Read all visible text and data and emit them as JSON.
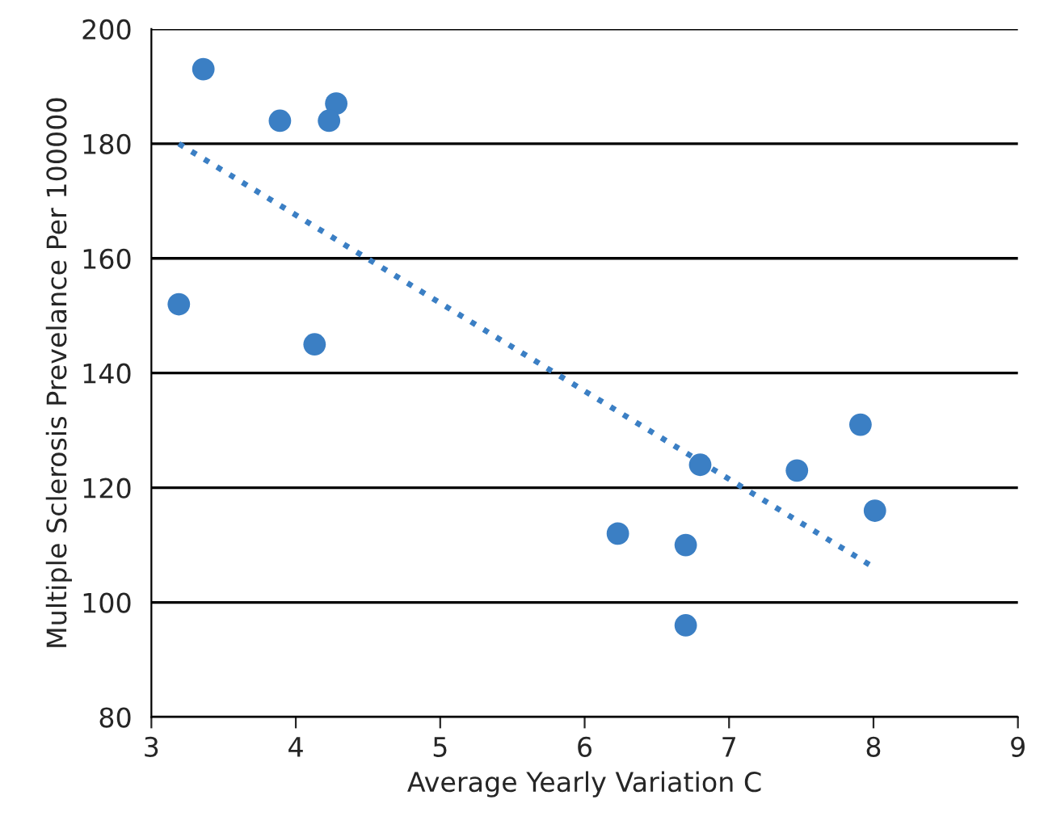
{
  "chart_data": {
    "type": "scatter",
    "xlabel": "Average Yearly Variation C",
    "ylabel": "Multiple Sclerosis Prevelance Per 100000",
    "xlim": [
      3,
      9
    ],
    "xticks": [
      3,
      4,
      5,
      6,
      7,
      8,
      9
    ],
    "ylim": [
      80,
      200
    ],
    "yticks": [
      80,
      100,
      120,
      140,
      160,
      180,
      200
    ],
    "grid": "y",
    "marker": "circle",
    "series": [
      {
        "color": "#3b7fc4",
        "x": [
          3.19,
          3.36,
          3.89,
          4.28,
          4.23,
          4.13,
          6.23,
          6.7,
          6.7,
          6.8,
          7.47,
          7.91,
          8.01
        ],
        "values": [
          152,
          193,
          184,
          187,
          184,
          145,
          112,
          110,
          96,
          124,
          123,
          131,
          116
        ]
      },
      {
        "type": "line",
        "line_style": "dotted",
        "marker": "none",
        "color": "#3b7fc4",
        "x": [
          3.19,
          8.01
        ],
        "values": [
          180,
          106
        ]
      }
    ]
  }
}
